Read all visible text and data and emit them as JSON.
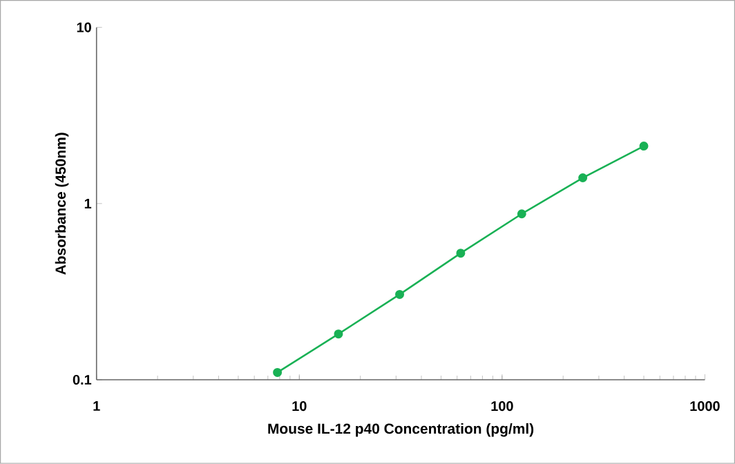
{
  "chart_data": {
    "type": "line",
    "xlabel": "Mouse IL-12 p40 Concentration (pg/ml)",
    "ylabel": "Absorbance (450nm)",
    "x": [
      7.8,
      15.6,
      31.25,
      62.5,
      125,
      250,
      500
    ],
    "series": [
      {
        "color": "#19b155",
        "values": [
          0.11,
          0.182,
          0.305,
          0.523,
          0.874,
          1.4,
          2.12
        ]
      }
    ],
    "log": "xy",
    "xlim": [
      1,
      1000
    ],
    "ylim": [
      0.1,
      10
    ],
    "xticks": [
      1,
      10,
      100,
      1000
    ],
    "yticks": [
      0.1,
      1,
      10
    ],
    "marker": "circle",
    "line_style": "solid"
  }
}
